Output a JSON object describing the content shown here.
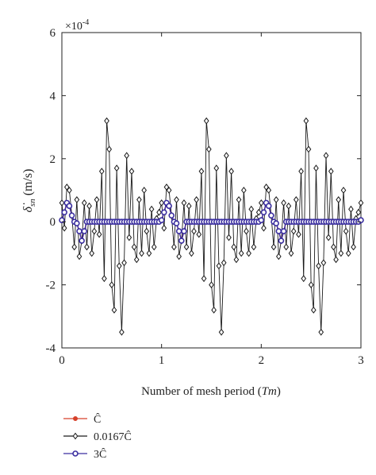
{
  "chart_data": {
    "type": "line",
    "xlabel_text": "Number of mesh period (",
    "xlabel_italic": "Tm",
    "xlabel_close": ")",
    "ylabel_symbol": "δ̇",
    "ylabel_sub": "sn",
    "ylabel_unit": "(m/s)",
    "y_multiplier_base": "×10",
    "y_multiplier_exp": "-4",
    "xlim": [
      0,
      3
    ],
    "ylim": [
      -4,
      6
    ],
    "x_ticks": [
      0,
      1,
      2,
      3
    ],
    "y_ticks": [
      -4,
      -2,
      0,
      2,
      4,
      6
    ],
    "grid": false,
    "legend_position": "bottom-left, below plot",
    "period_x": [
      0.0,
      0.025,
      0.05,
      0.075,
      0.1,
      0.125,
      0.15,
      0.175,
      0.2,
      0.225,
      0.25,
      0.275,
      0.3,
      0.325,
      0.35,
      0.375,
      0.4,
      0.425,
      0.45,
      0.475,
      0.5,
      0.525,
      0.55,
      0.575,
      0.6,
      0.625,
      0.65,
      0.675,
      0.7,
      0.725,
      0.75,
      0.775,
      0.8,
      0.825,
      0.85,
      0.875,
      0.9,
      0.925,
      0.95,
      0.975
    ],
    "series": [
      {
        "name": "Ĉ",
        "color": "#d6402a",
        "marker": "filled-circle",
        "period_values": [
          0.05,
          0.3,
          0.6,
          0.5,
          0.2,
          0.0,
          -0.05,
          -0.3,
          -0.6,
          -0.3,
          0.0,
          0.0,
          0.0,
          0.0,
          0.0,
          0.0,
          0.0,
          0.0,
          0.0,
          0.0,
          0.0,
          0.0,
          0.0,
          0.0,
          0.0,
          0.0,
          0.0,
          0.0,
          0.0,
          0.0,
          0.0,
          0.0,
          0.0,
          0.0,
          0.0,
          0.0,
          0.0,
          0.0,
          0.0,
          0.0
        ]
      },
      {
        "name": "0.0167Ĉ",
        "color": "#1a1a1a",
        "marker": "open-diamond",
        "period_values": [
          0.6,
          -0.2,
          1.1,
          1.0,
          0.2,
          -0.8,
          0.7,
          -1.1,
          -0.6,
          0.6,
          -0.8,
          0.5,
          -1.0,
          -0.3,
          0.7,
          -0.4,
          1.6,
          -1.8,
          3.2,
          2.3,
          -2.0,
          -2.8,
          1.7,
          -1.4,
          -3.5,
          -1.3,
          2.1,
          -0.5,
          1.6,
          -0.8,
          -1.2,
          0.7,
          -1.0,
          1.0,
          -0.3,
          -1.0,
          0.4,
          -0.8,
          0.1,
          0.3
        ]
      },
      {
        "name": "3Ĉ",
        "color": "#3b2fa0",
        "marker": "open-circle",
        "period_values": [
          0.05,
          0.3,
          0.6,
          0.5,
          0.2,
          0.0,
          -0.05,
          -0.3,
          -0.6,
          -0.3,
          0.0,
          0.0,
          0.0,
          0.0,
          0.0,
          0.0,
          0.0,
          0.0,
          0.0,
          0.0,
          0.0,
          0.0,
          0.0,
          0.0,
          0.0,
          0.0,
          0.0,
          0.0,
          0.0,
          0.0,
          0.0,
          0.0,
          0.0,
          0.0,
          0.0,
          0.0,
          0.0,
          0.0,
          0.0,
          0.0
        ]
      }
    ],
    "legend": [
      {
        "label": "Ĉ",
        "series": 0
      },
      {
        "label": "0.0167Ĉ",
        "series": 1
      },
      {
        "label": "3Ĉ",
        "series": 2
      }
    ]
  }
}
